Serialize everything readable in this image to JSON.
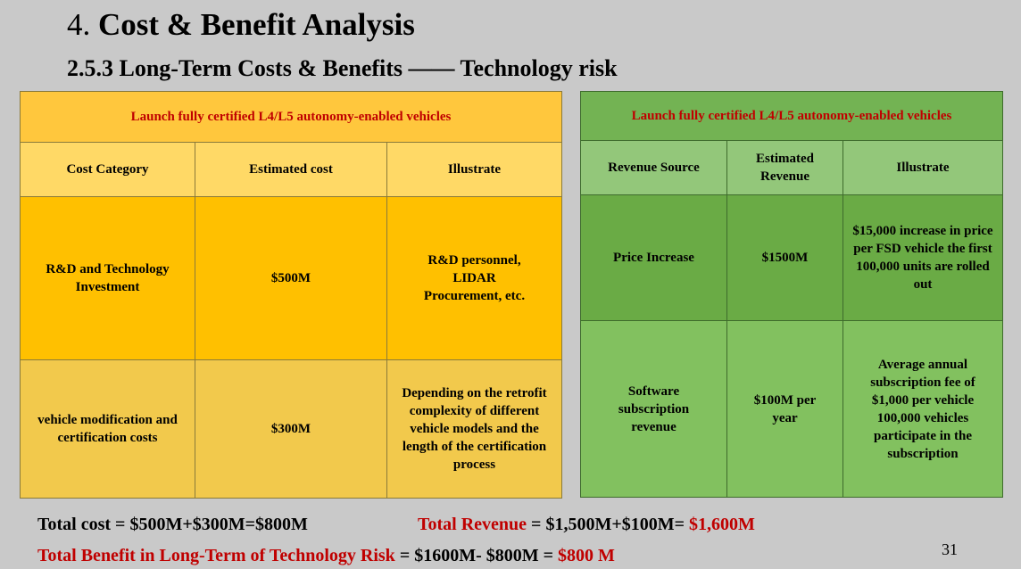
{
  "title": {
    "number": "4.",
    "text": "Cost & Benefit Analysis"
  },
  "subtitle": "2.5.3 Long-Term Costs & Benefits —— Technology risk",
  "cost_table": {
    "header": "Launch fully certified L4/L5 autonomy-enabled vehicles",
    "columns": [
      "Cost Category",
      "Estimated cost",
      "Illustrate"
    ],
    "rows": [
      {
        "category": "R&D and Technology Investment",
        "cost": "$500M",
        "illustrate": "R&D personnel, LIDAR Procurement, etc."
      },
      {
        "category": "vehicle modification and certification costs",
        "cost": "$300M",
        "illustrate": "Depending on the retrofit complexity of different vehicle models and the length of the certification process"
      }
    ]
  },
  "revenue_table": {
    "header": "Launch fully certified L4/L5 autonomy-enabled vehicles",
    "columns": [
      "Revenue Source",
      "Estimated Revenue",
      "Illustrate"
    ],
    "rows": [
      {
        "source": "Price Increase",
        "revenue": "$1500M",
        "illustrate": "$15,000 increase in price per FSD vehicle the first 100,000 units are rolled out"
      },
      {
        "source": "Software subscription revenue",
        "revenue": "$100M per year",
        "illustrate": "Average annual subscription fee of $1,000 per vehicle 100,000 vehicles participate in the subscription"
      }
    ]
  },
  "totals": {
    "cost": "Total cost = $500M+$300M=$800M",
    "revenue_label": "Total Revenue",
    "revenue_formula": " = $1,500M+$100M= ",
    "revenue_value": "$1,600M",
    "benefit_label": "Total Benefit in Long-Term of Technology Risk",
    "benefit_formula": " = $1600M- $800M = ",
    "benefit_value": "$800 M"
  },
  "page_number": "31"
}
